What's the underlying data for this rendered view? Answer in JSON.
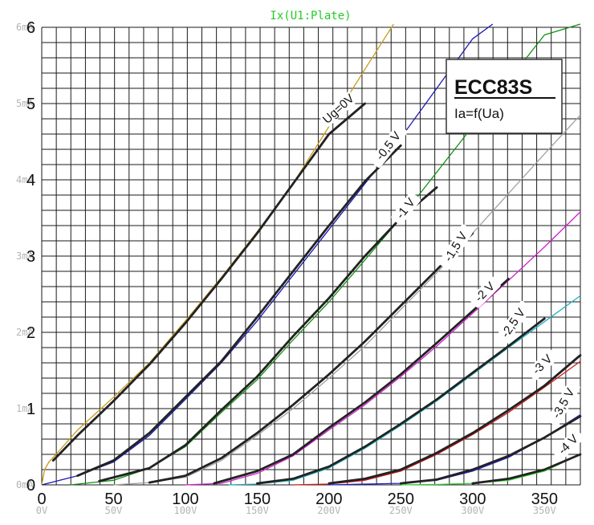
{
  "chart_data": {
    "type": "line",
    "title": "Ix(U1:Plate)",
    "tube": {
      "name": "ECC83S",
      "relation": "Ia=f(Ua)"
    },
    "x_unit": "V",
    "y_unit": "mA",
    "xlim": [
      0,
      375
    ],
    "ylim": [
      0,
      6
    ],
    "grid": true,
    "x_ticks_big": [
      "0",
      "50",
      "100",
      "150",
      "200",
      "250",
      "300",
      "350"
    ],
    "x_ticks_sim": [
      "0V",
      "50V",
      "100V",
      "150V",
      "200V",
      "250V",
      "300V",
      "350V"
    ],
    "y_ticks_big": [
      "0",
      "1",
      "2",
      "3",
      "4",
      "5",
      "6"
    ],
    "y_ticks_sim": [
      "0mA",
      "1mA",
      "2mA",
      "3mA",
      "4mA",
      "5mA",
      "6mA"
    ],
    "series": [
      {
        "name": "Ug=0V",
        "color": "#c89a1e",
        "x": [
          0,
          2,
          5,
          10,
          25,
          50,
          75,
          100,
          125,
          150,
          175,
          200,
          225,
          245
        ],
        "y": [
          0,
          0.2,
          0.3,
          0.4,
          0.72,
          1.15,
          1.6,
          2.15,
          2.72,
          3.32,
          3.95,
          4.7,
          5.45,
          6.3
        ]
      },
      {
        "name": "-0.5V",
        "color": "#1a1ab4",
        "x": [
          0,
          25,
          50,
          75,
          100,
          125,
          150,
          175,
          200,
          225,
          250,
          275,
          300,
          314
        ],
        "y": [
          0,
          0.12,
          0.3,
          0.65,
          1.12,
          1.6,
          2.15,
          2.75,
          3.35,
          3.95,
          4.55,
          5.2,
          5.85,
          6.3
        ]
      },
      {
        "name": "-1 V",
        "color": "#109010",
        "x": [
          20,
          50,
          75,
          100,
          125,
          150,
          175,
          200,
          225,
          250,
          275,
          300,
          325,
          350,
          375
        ],
        "y": [
          0,
          0.06,
          0.22,
          0.5,
          0.95,
          1.38,
          1.9,
          2.4,
          2.95,
          3.5,
          4.1,
          4.7,
          5.3,
          5.9,
          6.3
        ]
      },
      {
        "name": "-1,5 V",
        "color": "#a0a0a0",
        "x": [
          50,
          75,
          100,
          125,
          150,
          175,
          200,
          225,
          250,
          275,
          300,
          325,
          350,
          375
        ],
        "y": [
          0,
          0.03,
          0.1,
          0.32,
          0.65,
          1.0,
          1.4,
          1.82,
          2.3,
          2.78,
          3.3,
          3.82,
          4.34,
          4.85
        ]
      },
      {
        "name": "-2 V",
        "color": "#d020d0",
        "x": [
          100,
          125,
          150,
          175,
          200,
          225,
          250,
          275,
          300,
          325,
          350,
          375
        ],
        "y": [
          0,
          0.02,
          0.15,
          0.38,
          0.72,
          1.05,
          1.42,
          1.82,
          2.25,
          2.68,
          3.12,
          3.58
        ]
      },
      {
        "name": "-2,5 V",
        "color": "#20b0c0",
        "x": [
          130,
          150,
          175,
          200,
          225,
          250,
          275,
          300,
          325,
          350,
          375
        ],
        "y": [
          0,
          0.01,
          0.06,
          0.22,
          0.48,
          0.78,
          1.1,
          1.45,
          1.8,
          2.14,
          2.48
        ]
      },
      {
        "name": "-3 V",
        "color": "#d01818",
        "x": [
          175,
          200,
          225,
          250,
          275,
          300,
          325,
          350,
          375
        ],
        "y": [
          0,
          0.01,
          0.06,
          0.18,
          0.4,
          0.66,
          0.95,
          1.28,
          1.62
        ]
      },
      {
        "name": "-3,5 V",
        "color": "#2222d0",
        "x": [
          200,
          225,
          250,
          275,
          300,
          325,
          350,
          375
        ],
        "y": [
          0,
          0.01,
          0.02,
          0.06,
          0.18,
          0.36,
          0.62,
          0.92
        ]
      },
      {
        "name": "-4 V",
        "color": "#30d030",
        "x": [
          250,
          275,
          300,
          325,
          350,
          375
        ],
        "y": [
          0,
          0.005,
          0.02,
          0.06,
          0.18,
          0.4
        ]
      }
    ],
    "measured": [
      {
        "x": [
          8,
          25,
          50,
          75,
          100,
          125,
          150,
          175,
          200,
          225
        ],
        "y": [
          0.32,
          0.65,
          1.1,
          1.58,
          2.12,
          2.7,
          3.3,
          3.95,
          4.6,
          5.0
        ]
      },
      {
        "x": [
          25,
          50,
          75,
          100,
          125,
          150,
          175,
          200,
          225,
          250
        ],
        "y": [
          0.12,
          0.32,
          0.68,
          1.15,
          1.62,
          2.2,
          2.8,
          3.4,
          3.98,
          4.45
        ]
      },
      {
        "x": [
          40,
          75,
          100,
          125,
          150,
          175,
          200,
          225,
          250,
          275
        ],
        "y": [
          0.05,
          0.22,
          0.52,
          0.98,
          1.42,
          1.95,
          2.45,
          3.0,
          3.5,
          3.9
        ]
      },
      {
        "x": [
          75,
          100,
          125,
          150,
          175,
          200,
          225,
          250,
          275,
          300
        ],
        "y": [
          0.03,
          0.12,
          0.35,
          0.68,
          1.05,
          1.45,
          1.88,
          2.35,
          2.82,
          3.3
        ]
      },
      {
        "x": [
          120,
          150,
          175,
          200,
          225,
          250,
          275,
          300,
          325
        ],
        "y": [
          0.02,
          0.18,
          0.4,
          0.75,
          1.08,
          1.45,
          1.86,
          2.28,
          2.7
        ]
      },
      {
        "x": [
          150,
          175,
          200,
          225,
          250,
          275,
          300,
          325,
          350
        ],
        "y": [
          0.02,
          0.08,
          0.24,
          0.5,
          0.8,
          1.12,
          1.47,
          1.82,
          2.18
        ]
      },
      {
        "x": [
          200,
          225,
          250,
          275,
          300,
          325,
          350,
          375
        ],
        "y": [
          0.02,
          0.08,
          0.2,
          0.42,
          0.68,
          0.98,
          1.3,
          1.7
        ]
      },
      {
        "x": [
          250,
          275,
          300,
          325,
          350,
          375
        ],
        "y": [
          0.02,
          0.07,
          0.2,
          0.38,
          0.62,
          0.9
        ]
      },
      {
        "x": [
          300,
          325,
          350,
          375
        ],
        "y": [
          0.02,
          0.08,
          0.2,
          0.4
        ]
      }
    ],
    "curve_labels": [
      {
        "text": "Ug=0V",
        "x": 208,
        "y": 4.9,
        "angle": -42
      },
      {
        "text": "-0,5 V",
        "x": 243,
        "y": 4.42,
        "angle": -52
      },
      {
        "text": "-1 V",
        "x": 255,
        "y": 3.6,
        "angle": -52
      },
      {
        "text": "-1,5 V",
        "x": 290,
        "y": 3.1,
        "angle": -58
      },
      {
        "text": "-2 V",
        "x": 310,
        "y": 2.5,
        "angle": -45
      },
      {
        "text": "-2,5 V",
        "x": 330,
        "y": 2.1,
        "angle": -55
      },
      {
        "text": "-3 V",
        "x": 350,
        "y": 1.55,
        "angle": -45
      },
      {
        "text": "-3,5 V",
        "x": 365,
        "y": 1.05,
        "angle": -60
      },
      {
        "text": "-4 V",
        "x": 368,
        "y": 0.5,
        "angle": -45
      }
    ]
  }
}
